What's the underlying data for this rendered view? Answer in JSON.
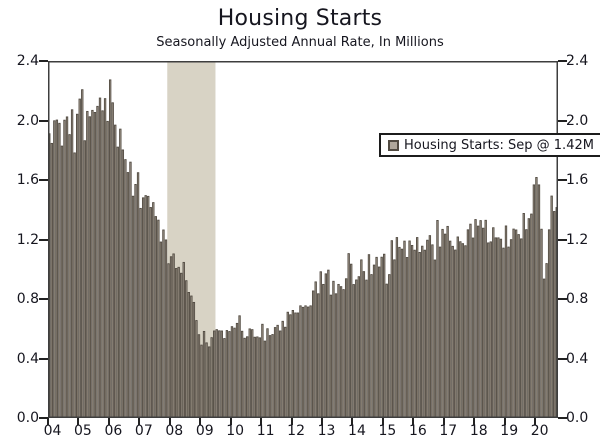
{
  "page": {
    "background": "#ffffff"
  },
  "chart_data": {
    "type": "bar",
    "title": "Housing Starts",
    "subtitle": "Seasonally Adjusted Annual Rate, In Millions",
    "legend_label": "Housing Starts: Sep @ 1.42M",
    "legend_position": "top-right",
    "frequency": "monthly",
    "x_start": "2004-01",
    "x_end": "2020-09",
    "x_tick_labels": [
      "04",
      "05",
      "06",
      "07",
      "08",
      "09",
      "10",
      "11",
      "12",
      "13",
      "14",
      "15",
      "16",
      "17",
      "18",
      "19",
      "20"
    ],
    "ylim": [
      0,
      2.4
    ],
    "yticks": [
      0.0,
      0.4,
      0.8,
      1.2,
      1.6,
      2.0,
      2.4
    ],
    "grid": false,
    "shaded_region": {
      "name": "recession-band",
      "start": "2007-12",
      "end": "2009-06"
    },
    "values": [
      1.911,
      1.846,
      1.998,
      2.003,
      1.981,
      1.828,
      2.002,
      2.024,
      1.905,
      2.072,
      1.782,
      2.042,
      2.144,
      2.207,
      1.864,
      2.061,
      2.025,
      2.068,
      2.054,
      2.095,
      2.151,
      2.065,
      2.147,
      1.994,
      2.273,
      2.119,
      1.969,
      1.821,
      1.942,
      1.802,
      1.737,
      1.65,
      1.72,
      1.491,
      1.57,
      1.649,
      1.409,
      1.48,
      1.495,
      1.49,
      1.415,
      1.448,
      1.354,
      1.33,
      1.183,
      1.264,
      1.197,
      1.037,
      1.084,
      1.103,
      1.005,
      1.013,
      0.973,
      1.046,
      0.923,
      0.844,
      0.82,
      0.777,
      0.655,
      0.56,
      0.49,
      0.582,
      0.505,
      0.478,
      0.54,
      0.585,
      0.594,
      0.586,
      0.585,
      0.534,
      0.588,
      0.581,
      0.614,
      0.604,
      0.636,
      0.687,
      0.583,
      0.536,
      0.546,
      0.599,
      0.594,
      0.543,
      0.545,
      0.539,
      0.63,
      0.517,
      0.6,
      0.554,
      0.561,
      0.608,
      0.623,
      0.585,
      0.65,
      0.61,
      0.711,
      0.694,
      0.723,
      0.706,
      0.706,
      0.754,
      0.744,
      0.754,
      0.746,
      0.754,
      0.854,
      0.915,
      0.835,
      0.983,
      0.898,
      0.969,
      0.994,
      0.826,
      0.919,
      0.835,
      0.898,
      0.883,
      0.863,
      0.936,
      1.105,
      1.034,
      0.897,
      0.928,
      0.95,
      1.063,
      0.984,
      0.927,
      1.098,
      0.964,
      1.028,
      1.08,
      1.015,
      1.081,
      1.101,
      0.9,
      0.964,
      1.192,
      1.063,
      1.213,
      1.147,
      1.135,
      1.189,
      1.079,
      1.19,
      1.16,
      1.128,
      1.213,
      1.113,
      1.155,
      1.128,
      1.195,
      1.226,
      1.164,
      1.062,
      1.328,
      1.149,
      1.268,
      1.236,
      1.288,
      1.189,
      1.154,
      1.129,
      1.217,
      1.185,
      1.172,
      1.158,
      1.265,
      1.303,
      1.21,
      1.334,
      1.29,
      1.327,
      1.276,
      1.329,
      1.177,
      1.184,
      1.279,
      1.211,
      1.211,
      1.202,
      1.142,
      1.291,
      1.149,
      1.199,
      1.27,
      1.264,
      1.233,
      1.204,
      1.375,
      1.266,
      1.34,
      1.371,
      1.567,
      1.617,
      1.567,
      1.269,
      0.934,
      1.038,
      1.265,
      1.492,
      1.388,
      1.415
    ],
    "colors": {
      "bar_fill": "#b0a79b",
      "bar_stroke": "#514a41",
      "recession_band": "#d8d3c5",
      "axis_box": "#3e3e3e",
      "tick": "#222222",
      "text": "#16161f",
      "legend_border": "#1c1c1c"
    }
  }
}
